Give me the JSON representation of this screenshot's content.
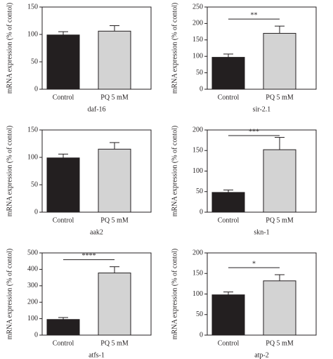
{
  "chart_data": [
    {
      "type": "bar",
      "categories": [
        "Control",
        "PQ 5 mM"
      ],
      "values": [
        99,
        106
      ],
      "errors": [
        6,
        10
      ],
      "colors": [
        "#231f20",
        "#d3d3d3"
      ],
      "ylabel": "mRNA expression (% of contol)",
      "xlabel": "daf-16",
      "ylim": [
        0,
        150
      ],
      "yticks": [
        0,
        50,
        100,
        150
      ]
    },
    {
      "type": "bar",
      "categories": [
        "Control",
        "PQ 5 mM"
      ],
      "values": [
        97,
        170
      ],
      "errors": [
        10,
        22
      ],
      "colors": [
        "#231f20",
        "#d3d3d3"
      ],
      "ylabel": "mRNA expression (% of contol)",
      "xlabel": "sir-2.1",
      "ylim": [
        0,
        250
      ],
      "yticks": [
        0,
        50,
        100,
        150,
        200,
        250
      ],
      "annotation": "**"
    },
    {
      "type": "bar",
      "categories": [
        "Control",
        "PQ 5 mM"
      ],
      "values": [
        99,
        115
      ],
      "errors": [
        7,
        12
      ],
      "colors": [
        "#231f20",
        "#d3d3d3"
      ],
      "ylabel": "mRNA expression (% of contol)",
      "xlabel": "aak2",
      "ylim": [
        0,
        150
      ],
      "yticks": [
        0,
        50,
        100,
        150
      ]
    },
    {
      "type": "bar",
      "categories": [
        "Control",
        "PQ 5 mM"
      ],
      "values": [
        48,
        152
      ],
      "errors": [
        6,
        30
      ],
      "colors": [
        "#231f20",
        "#d3d3d3"
      ],
      "ylabel": "mRNA expression (% of contol)",
      "xlabel": "skn-1",
      "ylim": [
        0,
        200
      ],
      "yticks": [
        0,
        50,
        100,
        150,
        200
      ],
      "annotation": "***"
    },
    {
      "type": "bar",
      "categories": [
        "Control",
        "PQ 5 mM"
      ],
      "values": [
        95,
        378
      ],
      "errors": [
        12,
        38
      ],
      "colors": [
        "#231f20",
        "#d3d3d3"
      ],
      "ylabel": "mRNA expression (% of contol)",
      "xlabel": "atfs-1",
      "ylim": [
        0,
        500
      ],
      "yticks": [
        0,
        100,
        200,
        300,
        400,
        500
      ],
      "annotation": "****"
    },
    {
      "type": "bar",
      "categories": [
        "Control",
        "PQ 5 mM"
      ],
      "values": [
        98,
        132
      ],
      "errors": [
        7,
        15
      ],
      "colors": [
        "#231f20",
        "#d3d3d3"
      ],
      "ylabel": "mRNA expression (% of contol)",
      "xlabel": "atp-2",
      "ylim": [
        0,
        200
      ],
      "yticks": [
        0,
        50,
        100,
        150,
        200
      ],
      "annotation": "*"
    }
  ]
}
